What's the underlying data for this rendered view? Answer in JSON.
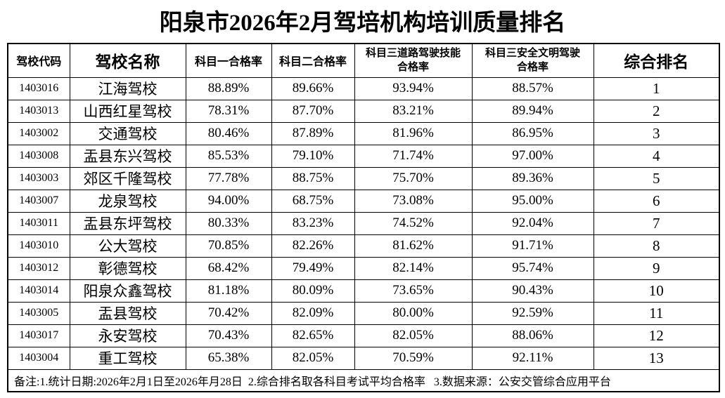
{
  "title": "阳泉市2026年2月驾培机构培训质量排名",
  "table": {
    "columns": [
      {
        "key": "code",
        "label": "驾校代码"
      },
      {
        "key": "name",
        "label": "驾校名称"
      },
      {
        "key": "subject1-pass",
        "label": "科目一合格率"
      },
      {
        "key": "subject2-pass",
        "label": "科目二合格率"
      },
      {
        "key": "subject3-road",
        "label": "科目三道路驾驶技能\n合格率"
      },
      {
        "key": "subject3-safe",
        "label": "科目三安全文明驾驶\n合格率"
      },
      {
        "key": "overall-rank",
        "label": "综合排名"
      }
    ],
    "rows": [
      [
        "1403016",
        "江海驾校",
        "88.89%",
        "89.66%",
        "93.94%",
        "88.57%",
        "1"
      ],
      [
        "1403013",
        "山西红星驾校",
        "78.31%",
        "87.70%",
        "83.21%",
        "89.94%",
        "2"
      ],
      [
        "1403002",
        "交通驾校",
        "80.46%",
        "87.89%",
        "81.96%",
        "86.95%",
        "3"
      ],
      [
        "1403008",
        "盂县东兴驾校",
        "85.53%",
        "79.10%",
        "71.74%",
        "97.00%",
        "4"
      ],
      [
        "1403003",
        "郊区千隆驾校",
        "77.78%",
        "88.75%",
        "75.70%",
        "89.36%",
        "5"
      ],
      [
        "1403007",
        "龙泉驾校",
        "94.00%",
        "68.75%",
        "73.08%",
        "95.00%",
        "6"
      ],
      [
        "1403011",
        "盂县东坪驾校",
        "80.33%",
        "83.23%",
        "74.52%",
        "92.04%",
        "7"
      ],
      [
        "1403010",
        "公大驾校",
        "70.85%",
        "82.26%",
        "81.62%",
        "91.71%",
        "8"
      ],
      [
        "1403012",
        "彰德驾校",
        "68.42%",
        "79.49%",
        "82.14%",
        "95.74%",
        "9"
      ],
      [
        "1403014",
        "阳泉众鑫驾校",
        "81.18%",
        "80.09%",
        "73.65%",
        "90.43%",
        "10"
      ],
      [
        "1403005",
        "盂县驾校",
        "70.42%",
        "82.09%",
        "80.00%",
        "92.59%",
        "11"
      ],
      [
        "1403017",
        "永安驾校",
        "70.43%",
        "82.65%",
        "82.05%",
        "88.06%",
        "12"
      ],
      [
        "1403004",
        "重工驾校",
        "65.38%",
        "82.05%",
        "70.59%",
        "92.11%",
        "13"
      ]
    ],
    "note": "备注:1.统计日期:2026年2月1日至2026年月28日  2.综合排名取各科目考试平均合格率   3.数据来源：公安交管综合应用平台"
  }
}
